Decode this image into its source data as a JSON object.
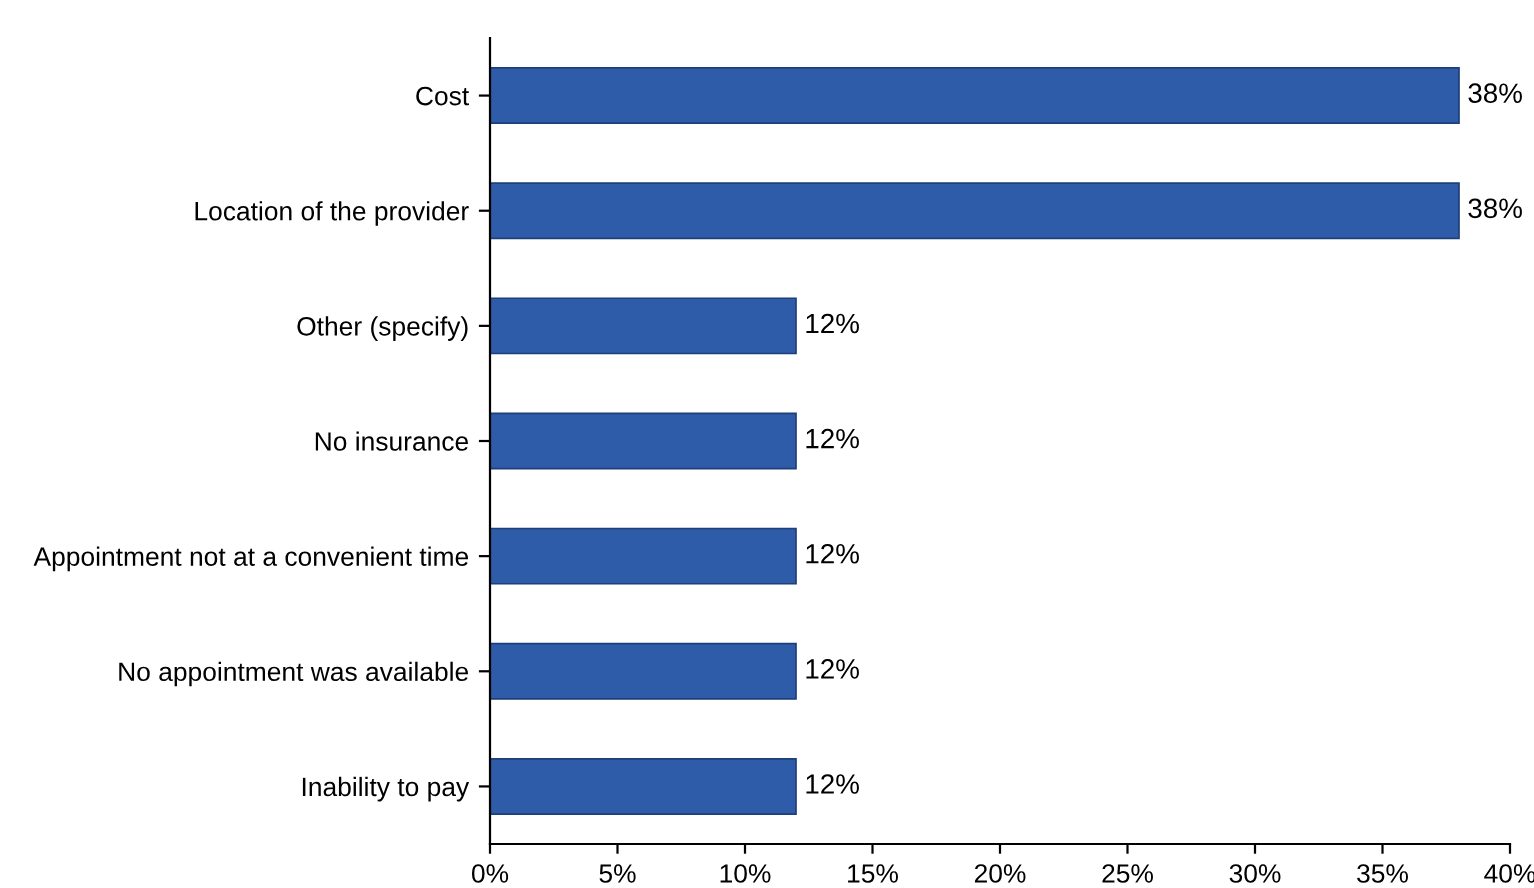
{
  "chart_data": {
    "type": "bar",
    "orientation": "horizontal",
    "categories": [
      "Cost",
      "Location of the provider",
      "Other (specify)",
      "No insurance",
      "Appointment not at a convenient time",
      "No appointment was available",
      "Inability to pay"
    ],
    "values": [
      38,
      38,
      12,
      12,
      12,
      12,
      12
    ],
    "value_labels": [
      "38%",
      "38%",
      "12%",
      "12%",
      "12%",
      "12%",
      "12%"
    ],
    "color": "#2e5ca8",
    "xlim": [
      0,
      40
    ],
    "xticks": [
      {
        "value": 0,
        "label": "0%"
      },
      {
        "value": 5,
        "label": "5%"
      },
      {
        "value": 10,
        "label": "10%"
      },
      {
        "value": 15,
        "label": "15%"
      },
      {
        "value": 20,
        "label": "20%"
      },
      {
        "value": 25,
        "label": "25%"
      },
      {
        "value": 30,
        "label": "30%"
      },
      {
        "value": 35,
        "label": "35%"
      },
      {
        "value": 40,
        "label": "40%"
      }
    ],
    "grid": false,
    "legend": false
  }
}
